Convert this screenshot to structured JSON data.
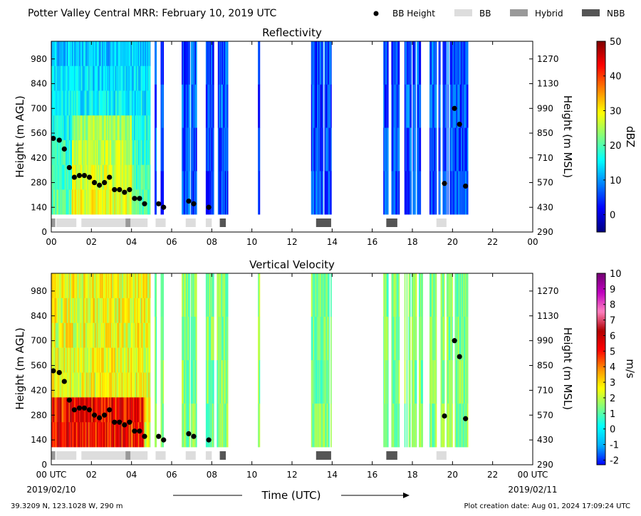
{
  "header": {
    "title": "Potter Valley Central MRR:  February 10, 2019 UTC",
    "legend": [
      {
        "label": "BB Height",
        "kind": "dot",
        "color": "#000000"
      },
      {
        "label": "BB",
        "kind": "box",
        "color": "#dddddd"
      },
      {
        "label": "Hybrid",
        "kind": "box",
        "color": "#999999"
      },
      {
        "label": "NBB",
        "kind": "box",
        "color": "#555555"
      }
    ]
  },
  "footer": {
    "location": "39.3209 N, 123.1028 W, 290 m",
    "creation": "Plot creation date: Aug 01, 2024 17:09:24 UTC",
    "xlabel": "Time (UTC)",
    "start_date": "2019/02/10",
    "end_date": "2019/02/11"
  },
  "chart_data": [
    {
      "type": "heatmap",
      "title": "Reflectivity",
      "ylabel": "Height (m AGL)",
      "y2label": "Height (m MSL)",
      "xlim": [
        0,
        24
      ],
      "ylim": [
        0,
        1080
      ],
      "x_ticks": [
        "00",
        "02",
        "04",
        "06",
        "08",
        "10",
        "12",
        "14",
        "16",
        "18",
        "20",
        "22",
        "00"
      ],
      "y_ticks": [
        0,
        140,
        280,
        420,
        560,
        700,
        840,
        980
      ],
      "y2_ticks": [
        290,
        430,
        570,
        710,
        850,
        990,
        1130,
        1270
      ],
      "colorbar": {
        "label": "dBZ",
        "min": -5,
        "max": 50,
        "ticks": [
          0,
          10,
          20,
          30,
          40,
          50
        ],
        "colors": [
          "#00007f",
          "#0000ff",
          "#0080ff",
          "#00ffff",
          "#80ff80",
          "#ffff00",
          "#ff8000",
          "#ff0000",
          "#7f0000"
        ]
      },
      "bb_height": {
        "x": [
          0.1,
          0.4,
          0.65,
          0.9,
          1.15,
          1.4,
          1.65,
          1.9,
          2.15,
          2.4,
          2.65,
          2.9,
          3.15,
          3.4,
          3.65,
          3.9,
          4.15,
          4.4,
          4.65,
          5.35,
          5.6,
          6.85,
          7.1,
          7.85,
          19.6,
          20.1,
          20.35,
          20.65
        ],
        "y": [
          530,
          520,
          470,
          365,
          310,
          320,
          320,
          310,
          280,
          265,
          280,
          310,
          240,
          240,
          225,
          240,
          190,
          190,
          160,
          160,
          140,
          175,
          160,
          140,
          275,
          700,
          610,
          260
        ]
      },
      "bb_type": [
        {
          "start": 0.0,
          "end": 0.2,
          "type": "Hybrid"
        },
        {
          "start": 0.25,
          "end": 1.25,
          "type": "BB"
        },
        {
          "start": 1.5,
          "end": 3.7,
          "type": "BB"
        },
        {
          "start": 3.7,
          "end": 3.95,
          "type": "Hybrid"
        },
        {
          "start": 3.95,
          "end": 4.8,
          "type": "BB"
        },
        {
          "start": 5.2,
          "end": 5.7,
          "type": "BB"
        },
        {
          "start": 6.7,
          "end": 7.2,
          "type": "BB"
        },
        {
          "start": 7.7,
          "end": 8.0,
          "type": "BB"
        },
        {
          "start": 8.4,
          "end": 8.7,
          "type": "NBB"
        },
        {
          "start": 13.2,
          "end": 13.95,
          "type": "NBB"
        },
        {
          "start": 16.7,
          "end": 17.25,
          "type": "NBB"
        },
        {
          "start": 19.2,
          "end": 19.7,
          "type": "BB"
        }
      ]
    },
    {
      "type": "heatmap",
      "title": "Vertical Velocity",
      "ylabel": "Height (m AGL)",
      "y2label": "Height (m MSL)",
      "xlim": [
        0,
        24
      ],
      "ylim": [
        0,
        1080
      ],
      "x_ticks": [
        "00 UTC",
        "02",
        "04",
        "06",
        "08",
        "10",
        "12",
        "14",
        "16",
        "18",
        "20",
        "22",
        "00 UTC"
      ],
      "y_ticks": [
        0,
        140,
        280,
        420,
        560,
        700,
        840,
        980
      ],
      "y2_ticks": [
        290,
        430,
        570,
        710,
        850,
        990,
        1130,
        1270
      ],
      "colorbar": {
        "label": "m/s",
        "min": -2.3,
        "max": 10,
        "ticks": [
          -2,
          -1,
          0,
          1,
          2,
          3,
          4,
          5,
          6,
          7,
          8,
          9,
          10
        ],
        "colors": [
          "#0000ff",
          "#00b0ff",
          "#00ffff",
          "#80ff80",
          "#ffff00",
          "#ff9000",
          "#ff0000",
          "#b00000",
          "#ff80c0",
          "#c000c0",
          "#700070"
        ]
      },
      "bb_height": {
        "x": [
          0.1,
          0.4,
          0.65,
          0.9,
          1.15,
          1.4,
          1.65,
          1.9,
          2.15,
          2.4,
          2.65,
          2.9,
          3.15,
          3.4,
          3.65,
          3.9,
          4.15,
          4.4,
          4.65,
          5.35,
          5.6,
          6.85,
          7.1,
          7.85,
          19.6,
          20.1,
          20.35,
          20.65
        ],
        "y": [
          530,
          520,
          470,
          365,
          310,
          320,
          320,
          310,
          280,
          265,
          280,
          310,
          240,
          240,
          225,
          240,
          190,
          190,
          160,
          160,
          140,
          175,
          160,
          140,
          275,
          700,
          610,
          260
        ]
      },
      "bb_type": [
        {
          "start": 0.0,
          "end": 0.2,
          "type": "Hybrid"
        },
        {
          "start": 0.25,
          "end": 1.25,
          "type": "BB"
        },
        {
          "start": 1.5,
          "end": 3.7,
          "type": "BB"
        },
        {
          "start": 3.7,
          "end": 3.95,
          "type": "Hybrid"
        },
        {
          "start": 3.95,
          "end": 4.8,
          "type": "BB"
        },
        {
          "start": 5.2,
          "end": 5.7,
          "type": "BB"
        },
        {
          "start": 6.7,
          "end": 7.2,
          "type": "BB"
        },
        {
          "start": 7.7,
          "end": 8.0,
          "type": "BB"
        },
        {
          "start": 8.4,
          "end": 8.7,
          "type": "NBB"
        },
        {
          "start": 13.2,
          "end": 13.95,
          "type": "NBB"
        },
        {
          "start": 16.7,
          "end": 17.25,
          "type": "NBB"
        },
        {
          "start": 19.2,
          "end": 19.7,
          "type": "BB"
        }
      ]
    }
  ]
}
